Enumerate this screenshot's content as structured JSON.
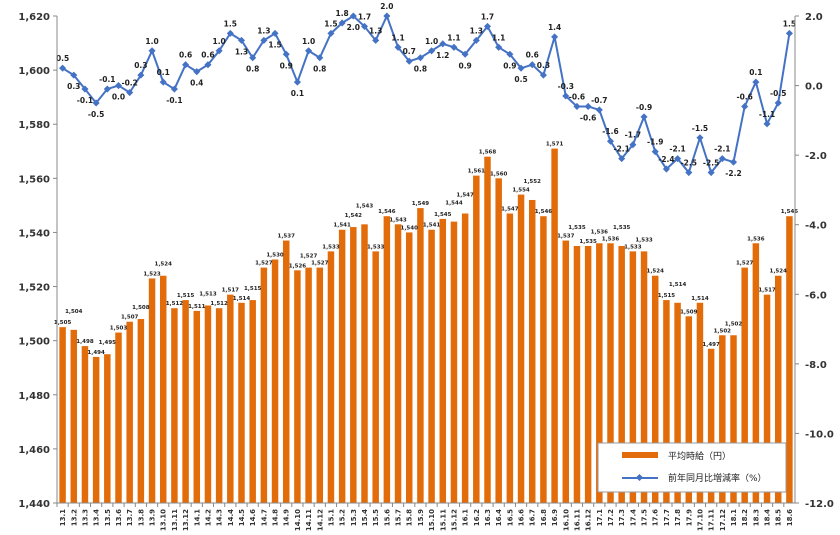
{
  "chart_data": {
    "type": "bar+line",
    "categories": [
      "13.1",
      "13.2",
      "13.3",
      "13.4",
      "13.5",
      "13.6",
      "13.7",
      "13.8",
      "13.9",
      "13.10",
      "13.11",
      "13.12",
      "14.1",
      "14.2",
      "14.3",
      "14.4",
      "14.5",
      "14.6",
      "14.7",
      "14.8",
      "14.9",
      "14.10",
      "14.11",
      "14.12",
      "15.1",
      "15.2",
      "15.3",
      "15.4",
      "15.5",
      "15.6",
      "15.7",
      "15.8",
      "15.9",
      "15.10",
      "15.11",
      "15.12",
      "16.1",
      "16.2",
      "16.3",
      "16.4",
      "16.5",
      "16.6",
      "16.7",
      "16.8",
      "16.9",
      "16.10",
      "16.11",
      "16.12",
      "17.1",
      "17.2",
      "17.3",
      "17.4",
      "17.5",
      "17.6",
      "17.7",
      "17.8",
      "17.9",
      "17.10",
      "17.11",
      "17.12",
      "18.1",
      "18.2",
      "18.3",
      "18.4",
      "18.5",
      "18.6"
    ],
    "series": [
      {
        "name": "平均時給（円）",
        "type": "bar",
        "axis": "left",
        "color": "#E36C0A",
        "values": [
          1505,
          1504,
          1498,
          1494,
          1495,
          1503,
          1507,
          1508,
          1523,
          1524,
          1512,
          1515,
          1511,
          1513,
          1512,
          1517,
          1514,
          1515,
          1527,
          1530,
          1537,
          1526,
          1527,
          1527,
          1533,
          1541,
          1542,
          1543,
          1533,
          1546,
          1543,
          1540,
          1549,
          1541,
          1545,
          1544,
          1547,
          1561,
          1568,
          1560,
          1547,
          1554,
          1552,
          1546,
          1571,
          1537,
          1535,
          1535,
          1536,
          1536,
          1535,
          1533,
          1533,
          1524,
          1515,
          1514,
          1509,
          1514,
          1497,
          1502,
          1502,
          1527,
          1536,
          1517,
          1524,
          1546
        ]
      },
      {
        "name": "前年同月比増減率（%）",
        "type": "line",
        "axis": "right",
        "color": "#4472C4",
        "values": [
          0.5,
          0.3,
          -0.1,
          -0.5,
          -0.1,
          0.0,
          -0.2,
          0.3,
          1.0,
          0.1,
          -0.1,
          0.6,
          0.4,
          0.6,
          1.0,
          1.5,
          1.3,
          0.8,
          1.3,
          1.5,
          0.9,
          0.1,
          1.0,
          0.8,
          1.5,
          1.8,
          2.0,
          1.7,
          1.3,
          2.0,
          1.1,
          0.7,
          0.8,
          1.0,
          1.2,
          1.1,
          0.9,
          1.3,
          1.7,
          1.1,
          0.9,
          0.5,
          0.6,
          0.3,
          1.4,
          -0.3,
          -0.6,
          -0.6,
          -0.7,
          -1.6,
          -2.1,
          -1.7,
          -0.9,
          -1.9,
          -2.4,
          -2.1,
          -2.5,
          -1.5,
          -2.5,
          -2.1,
          -2.2,
          -0.6,
          0.1,
          -1.1,
          -0.5,
          1.5
        ]
      }
    ],
    "left_axis": {
      "range": [
        1440,
        1620
      ],
      "ticks": [
        "1,440",
        "1,460",
        "1,480",
        "1,500",
        "1,520",
        "1,540",
        "1,560",
        "1,580",
        "1,600",
        "1,620"
      ]
    },
    "right_axis": {
      "range": [
        -12.0,
        2.0
      ],
      "ticks": [
        "2.0",
        "0.0",
        "-2.0",
        "-4.0",
        "-6.0",
        "-8.0",
        "-10.0",
        "-12.0"
      ]
    },
    "legend": {
      "placement": "bottom-right",
      "items": [
        "平均時給（円）",
        "前年同月比増減率（%）"
      ]
    },
    "grid": false
  }
}
